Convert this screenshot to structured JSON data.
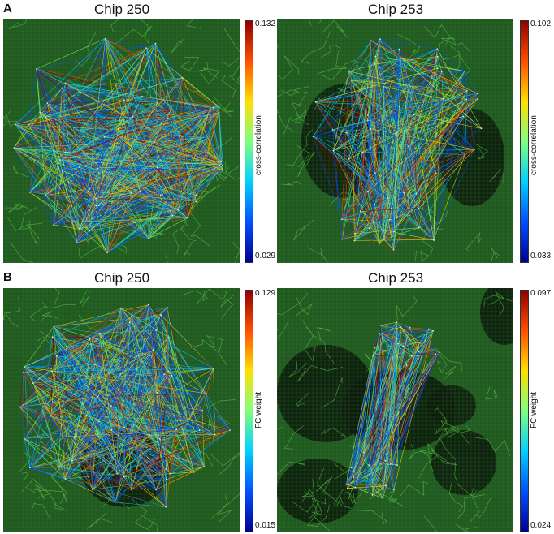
{
  "panels": [
    {
      "letter": "A",
      "measure_label": "cross-correlation",
      "left": {
        "title": "Chip 250",
        "cmax": "0.132",
        "cmin": "0.029"
      },
      "right": {
        "title": "Chip 253",
        "cmax": "0.102",
        "cmin": "0.033"
      }
    },
    {
      "letter": "B",
      "measure_label": "FC weight",
      "left": {
        "title": "Chip 250",
        "cmax": "0.129",
        "cmin": "0.015"
      },
      "right": {
        "title": "Chip 253",
        "cmax": "0.097",
        "cmin": "0.024"
      }
    }
  ],
  "colors": {
    "background_green": "#1f5a1f",
    "neuron_green": "#5fd14a",
    "dark_patch": "#0a1a0a",
    "colormap": [
      "#00008f",
      "#0050ff",
      "#00d0ff",
      "#7fff7f",
      "#ffe000",
      "#ff5000",
      "#8f0000"
    ]
  }
}
